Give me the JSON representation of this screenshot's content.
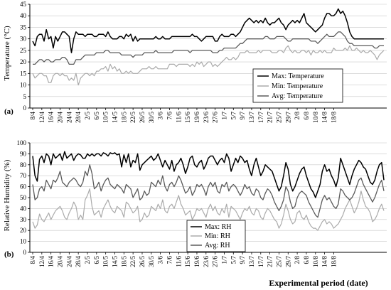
{
  "x_labels": [
    "8/4",
    "12/4",
    "16/4",
    "20/4",
    "24/4",
    "28/4",
    "2/5",
    "6/5",
    "10/5",
    "14/5",
    "18/5",
    "22/5",
    "26/5",
    "30/5",
    "3/6",
    "7/6",
    "11/6",
    "15/6",
    "19/6",
    "23/6",
    "27/6",
    "1/7",
    "5/7",
    "9/7",
    "13/7",
    "17/7",
    "21/7",
    "25/7",
    "29/7",
    "2/8",
    "6/8",
    "10/8",
    "14/8",
    "18/8"
  ],
  "x_axis_label": "Experimental period (date)",
  "chart_data": [
    {
      "type": "line",
      "panel_label": "(a)",
      "ylabel": "Temperature (°C)",
      "ylim": [
        0,
        45
      ],
      "yticks": [
        0,
        5,
        10,
        15,
        20,
        25,
        30,
        35,
        40,
        45
      ],
      "grid": true,
      "legend_position": "lower-right",
      "series": [
        {
          "name": "Max: Temperature",
          "color": "#000000",
          "width": 1.5,
          "values": [
            29,
            27,
            31,
            32,
            32,
            29,
            34,
            30,
            31,
            26,
            31,
            29,
            31,
            33,
            33,
            32,
            31,
            24,
            30,
            33,
            32,
            32,
            32,
            31,
            32,
            32,
            32,
            31,
            31,
            32,
            32,
            32,
            31,
            33,
            31,
            30,
            30,
            30,
            31,
            31,
            30,
            32,
            31,
            32,
            29,
            31,
            29,
            30,
            30,
            30,
            30,
            30,
            30,
            30,
            31,
            30,
            30,
            31,
            30,
            30,
            30,
            31,
            31,
            31,
            31,
            31,
            31,
            31,
            31,
            31,
            32,
            31,
            31,
            30,
            29,
            30,
            31,
            31,
            31,
            31,
            29,
            29,
            31,
            32,
            31,
            31,
            31,
            32,
            32,
            31,
            32,
            33,
            35,
            37,
            38,
            39,
            38,
            37,
            38,
            37,
            38,
            37,
            39,
            37,
            36,
            37,
            37,
            38,
            39,
            37,
            36,
            34,
            36,
            37,
            38,
            37,
            38,
            37,
            39,
            41,
            37,
            36,
            35,
            34,
            33,
            34,
            35,
            36,
            39,
            41,
            41,
            40,
            40,
            41,
            43,
            41,
            42,
            40,
            37,
            33,
            31,
            30,
            30,
            30,
            30,
            30,
            30,
            30,
            30,
            30,
            30,
            30,
            30,
            30,
            30
          ]
        },
        {
          "name": "Min: Temperature",
          "color": "#aaaaaa",
          "width": 1.2,
          "values": [
            15,
            13,
            14,
            15,
            15,
            14,
            14,
            11,
            11,
            14,
            15,
            15,
            14,
            15,
            14,
            14,
            12,
            13,
            12,
            15,
            10,
            13,
            14,
            15,
            15,
            14,
            15,
            14,
            16,
            16,
            17,
            17,
            18,
            16,
            19,
            17,
            18,
            16,
            17,
            15,
            15,
            16,
            15,
            16,
            15,
            15,
            15,
            16,
            17,
            17,
            17,
            18,
            17,
            17,
            18,
            17,
            17,
            17,
            17,
            17,
            19,
            19,
            19,
            18,
            19,
            19,
            19,
            19,
            19,
            18,
            19,
            18,
            20,
            19,
            20,
            18,
            19,
            20,
            20,
            18,
            19,
            18,
            19,
            20,
            21,
            22,
            21,
            21,
            22,
            21,
            22,
            24,
            24,
            24,
            25,
            24,
            24,
            24,
            24,
            25,
            24,
            25,
            25,
            25,
            25,
            24,
            24,
            24,
            25,
            25,
            24,
            26,
            27,
            25,
            24,
            25,
            24,
            24,
            25,
            25,
            24,
            25,
            23,
            25,
            24,
            24,
            25,
            24,
            25,
            24,
            24,
            24,
            26,
            25,
            25,
            25,
            25,
            26,
            25,
            27,
            25,
            25,
            26,
            25,
            24,
            25,
            24,
            24,
            25,
            24,
            23,
            21,
            23,
            24,
            25
          ]
        },
        {
          "name": "Avg: Temperature",
          "color": "#5a5a5a",
          "width": 1.3,
          "values": [
            19,
            19,
            20,
            21,
            21,
            20,
            21,
            21,
            20,
            20,
            21,
            21,
            21,
            22,
            22,
            21,
            19,
            19,
            19,
            21,
            21,
            21,
            22,
            23,
            23,
            23,
            23,
            23,
            24,
            24,
            24,
            24,
            25,
            25,
            24,
            24,
            24,
            24,
            24,
            23,
            23,
            23,
            23,
            23,
            22,
            23,
            23,
            23,
            23,
            24,
            24,
            24,
            24,
            24,
            25,
            24,
            24,
            24,
            24,
            24,
            24,
            24,
            25,
            25,
            25,
            25,
            25,
            25,
            25,
            24,
            25,
            25,
            25,
            25,
            25,
            25,
            25,
            25,
            25,
            24,
            24,
            24,
            25,
            25,
            26,
            26,
            26,
            26,
            26,
            26,
            27,
            28,
            28,
            29,
            30,
            30,
            30,
            30,
            30,
            30,
            30,
            30,
            31,
            31,
            30,
            30,
            30,
            31,
            31,
            31,
            31,
            30,
            29,
            29,
            30,
            30,
            30,
            30,
            30,
            30,
            30,
            30,
            29,
            29,
            29,
            28,
            29,
            30,
            31,
            32,
            31,
            31,
            31,
            32,
            33,
            33,
            32,
            31,
            29,
            28,
            28,
            27,
            27,
            27,
            27,
            27,
            27,
            27,
            27,
            27,
            26,
            26,
            27,
            27,
            27
          ]
        }
      ]
    },
    {
      "type": "line",
      "panel_label": "(b)",
      "ylabel": "Relative Humidity (%)",
      "ylim": [
        0,
        100
      ],
      "yticks": [
        0,
        10,
        20,
        30,
        40,
        50,
        60,
        70,
        80,
        90,
        100
      ],
      "grid": true,
      "legend_position": "lower-center",
      "series": [
        {
          "name": "Max: RH",
          "color": "#000000",
          "width": 1.5,
          "values": [
            88,
            70,
            65,
            85,
            88,
            82,
            90,
            88,
            80,
            90,
            86,
            88,
            90,
            84,
            92,
            86,
            88,
            90,
            84,
            88,
            90,
            89,
            86,
            86,
            90,
            88,
            90,
            88,
            90,
            90,
            88,
            91,
            90,
            88,
            91,
            90,
            91,
            89,
            90,
            78,
            89,
            82,
            90,
            78,
            84,
            82,
            90,
            75,
            80,
            82,
            84,
            86,
            88,
            84,
            86,
            90,
            84,
            78,
            84,
            80,
            76,
            84,
            74,
            80,
            82,
            86,
            80,
            72,
            78,
            86,
            88,
            80,
            78,
            82,
            84,
            76,
            80,
            86,
            88,
            88,
            84,
            80,
            84,
            86,
            82,
            90,
            86,
            74,
            80,
            86,
            82,
            88,
            86,
            82,
            84,
            76,
            70,
            80,
            86,
            78,
            70,
            74,
            80,
            78,
            76,
            74,
            68,
            62,
            56,
            60,
            70,
            82,
            76,
            62,
            56,
            60,
            66,
            72,
            76,
            78,
            70,
            64,
            58,
            55,
            50,
            56,
            62,
            74,
            80,
            74,
            76,
            70,
            66,
            60,
            68,
            86,
            80,
            74,
            68,
            62,
            70,
            76,
            80,
            84,
            82,
            78,
            76,
            70,
            64,
            62,
            66,
            74,
            80,
            82,
            66
          ]
        },
        {
          "name": "Min: RH",
          "color": "#aaaaaa",
          "width": 1.2,
          "values": [
            28,
            22,
            25,
            35,
            30,
            28,
            32,
            36,
            30,
            34,
            38,
            40,
            42,
            38,
            32,
            30,
            36,
            40,
            46,
            42,
            30,
            34,
            30,
            48,
            52,
            58,
            42,
            34,
            36,
            38,
            32,
            40,
            44,
            48,
            42,
            38,
            36,
            42,
            40,
            38,
            32,
            46,
            44,
            40,
            36,
            38,
            42,
            28,
            30,
            36,
            32,
            34,
            42,
            40,
            38,
            44,
            40,
            48,
            38,
            36,
            42,
            44,
            40,
            46,
            52,
            44,
            40,
            34,
            36,
            38,
            30,
            34,
            40,
            38,
            40,
            36,
            32,
            40,
            44,
            38,
            42,
            36,
            34,
            40,
            36,
            44,
            32,
            42,
            40,
            38,
            34,
            30,
            36,
            40,
            38,
            42,
            36,
            34,
            40,
            38,
            32,
            30,
            36,
            40,
            38,
            34,
            30,
            28,
            22,
            26,
            34,
            44,
            38,
            30,
            26,
            28,
            36,
            38,
            32,
            30,
            34,
            28,
            24,
            22,
            22,
            20,
            24,
            28,
            30,
            26,
            28,
            26,
            22,
            24,
            26,
            30,
            34,
            40,
            44,
            48,
            42,
            36,
            40,
            46,
            56,
            48,
            42,
            40,
            36,
            28,
            30,
            34,
            40,
            44,
            38
          ]
        },
        {
          "name": "Avg: RH",
          "color": "#5a5a5a",
          "width": 1.3,
          "values": [
            62,
            48,
            50,
            58,
            60,
            56,
            66,
            62,
            58,
            66,
            64,
            68,
            74,
            64,
            62,
            60,
            64,
            66,
            68,
            66,
            62,
            60,
            64,
            74,
            70,
            80,
            72,
            58,
            60,
            64,
            56,
            62,
            66,
            68,
            62,
            60,
            58,
            62,
            60,
            58,
            54,
            62,
            60,
            58,
            50,
            54,
            58,
            48,
            50,
            56,
            52,
            54,
            64,
            62,
            60,
            66,
            62,
            70,
            60,
            56,
            62,
            64,
            60,
            64,
            70,
            66,
            60,
            54,
            56,
            60,
            52,
            56,
            62,
            60,
            62,
            58,
            52,
            60,
            64,
            60,
            64,
            56,
            54,
            62,
            60,
            64,
            56,
            60,
            62,
            60,
            56,
            52,
            56,
            62,
            58,
            60,
            54,
            52,
            58,
            56,
            50,
            48,
            54,
            58,
            56,
            52,
            46,
            42,
            38,
            42,
            48,
            60,
            56,
            46,
            40,
            42,
            50,
            54,
            56,
            54,
            52,
            46,
            42,
            38,
            34,
            32,
            40,
            48,
            52,
            48,
            50,
            46,
            42,
            40,
            44,
            58,
            56,
            52,
            50,
            48,
            50,
            54,
            60,
            66,
            68,
            62,
            58,
            54,
            50,
            46,
            50,
            56,
            62,
            66,
            56
          ]
        }
      ]
    }
  ]
}
